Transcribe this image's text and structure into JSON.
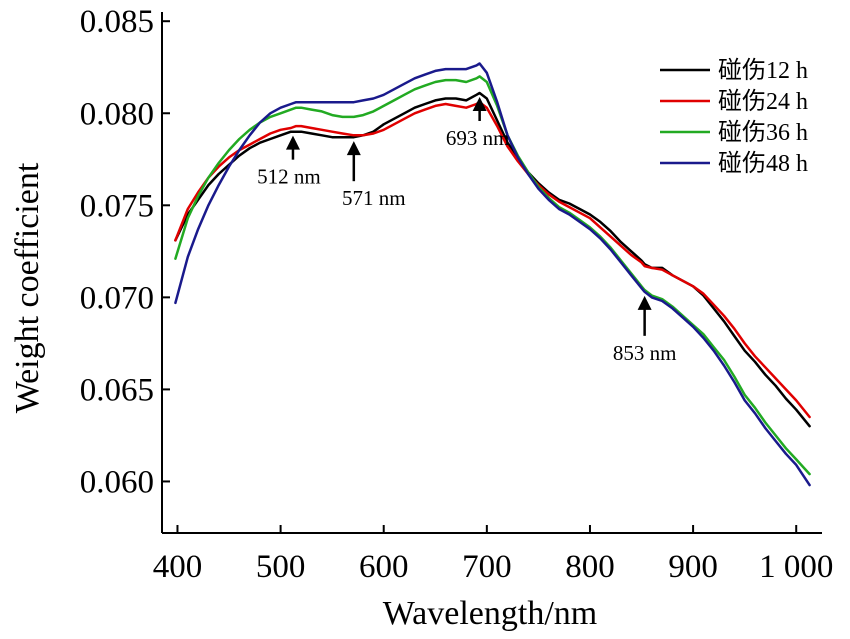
{
  "chart_data": {
    "type": "line",
    "title": "",
    "xlabel": "Wavelength/nm",
    "ylabel": "Weight coefficient",
    "xlim": [
      385,
      1025
    ],
    "ylim": [
      0.0572,
      0.0855
    ],
    "xticks": [
      400,
      500,
      600,
      700,
      800,
      900,
      1000
    ],
    "xtick_labels": [
      "400",
      "500",
      "600",
      "700",
      "800",
      "900",
      "1 000"
    ],
    "yticks": [
      0.06,
      0.065,
      0.07,
      0.075,
      0.08,
      0.085
    ],
    "ytick_labels": [
      "0.060",
      "0.065",
      "0.070",
      "0.075",
      "0.080",
      "0.085"
    ],
    "grid": false,
    "legend_position": "top-right",
    "x": [
      398,
      410,
      420,
      430,
      440,
      450,
      460,
      470,
      480,
      490,
      500,
      510,
      515,
      520,
      530,
      540,
      550,
      560,
      571,
      580,
      590,
      600,
      610,
      620,
      630,
      640,
      650,
      660,
      670,
      680,
      690,
      693,
      700,
      710,
      720,
      730,
      740,
      750,
      760,
      770,
      780,
      790,
      800,
      810,
      820,
      830,
      840,
      850,
      853,
      860,
      870,
      880,
      890,
      900,
      910,
      920,
      930,
      940,
      950,
      960,
      970,
      980,
      990,
      1000,
      1013
    ],
    "series": [
      {
        "name": "碰伤12 h",
        "color": "#000000",
        "values": [
          0.0731,
          0.0745,
          0.0753,
          0.0761,
          0.0767,
          0.0772,
          0.0777,
          0.0781,
          0.0784,
          0.0786,
          0.0788,
          0.079,
          0.079,
          0.079,
          0.0789,
          0.0788,
          0.0787,
          0.0787,
          0.0787,
          0.0788,
          0.079,
          0.0794,
          0.0797,
          0.08,
          0.0803,
          0.0805,
          0.0807,
          0.0808,
          0.0808,
          0.0807,
          0.081,
          0.0811,
          0.0808,
          0.0796,
          0.0784,
          0.0776,
          0.0768,
          0.0762,
          0.0757,
          0.0753,
          0.0751,
          0.0748,
          0.0745,
          0.0741,
          0.0736,
          0.073,
          0.0725,
          0.072,
          0.0718,
          0.0716,
          0.0716,
          0.0712,
          0.0709,
          0.0706,
          0.0701,
          0.0694,
          0.0687,
          0.0679,
          0.0671,
          0.0665,
          0.0658,
          0.0652,
          0.0645,
          0.0639,
          0.063
        ]
      },
      {
        "name": "碰伤24 h",
        "color": "#e00000",
        "values": [
          0.0731,
          0.0748,
          0.0757,
          0.0765,
          0.0771,
          0.0776,
          0.078,
          0.0783,
          0.0786,
          0.0789,
          0.0791,
          0.0792,
          0.0793,
          0.0793,
          0.0792,
          0.0791,
          0.079,
          0.0789,
          0.0788,
          0.0788,
          0.0789,
          0.0791,
          0.0794,
          0.0797,
          0.08,
          0.0802,
          0.0804,
          0.0805,
          0.0804,
          0.0803,
          0.0805,
          0.0806,
          0.0803,
          0.0793,
          0.0782,
          0.0774,
          0.0767,
          0.0761,
          0.0756,
          0.0752,
          0.0749,
          0.0746,
          0.0743,
          0.0738,
          0.0733,
          0.0728,
          0.0723,
          0.0719,
          0.0717,
          0.0716,
          0.0715,
          0.0712,
          0.0709,
          0.0706,
          0.0702,
          0.0696,
          0.069,
          0.0683,
          0.0675,
          0.0668,
          0.0662,
          0.0656,
          0.065,
          0.0644,
          0.0635
        ]
      },
      {
        "name": "碰伤36 h",
        "color": "#22aa22",
        "values": [
          0.0721,
          0.0743,
          0.0755,
          0.0765,
          0.0773,
          0.078,
          0.0786,
          0.0791,
          0.0795,
          0.0798,
          0.08,
          0.0802,
          0.0803,
          0.0803,
          0.0802,
          0.0801,
          0.0799,
          0.0798,
          0.0798,
          0.0799,
          0.0801,
          0.0804,
          0.0807,
          0.081,
          0.0813,
          0.0815,
          0.0817,
          0.0818,
          0.0818,
          0.0817,
          0.0819,
          0.082,
          0.0817,
          0.0804,
          0.0788,
          0.0777,
          0.0768,
          0.076,
          0.0754,
          0.0749,
          0.0746,
          0.0742,
          0.0738,
          0.0733,
          0.0727,
          0.072,
          0.0713,
          0.0706,
          0.0704,
          0.0701,
          0.0699,
          0.0695,
          0.069,
          0.0685,
          0.068,
          0.0673,
          0.0666,
          0.0657,
          0.0647,
          0.064,
          0.0632,
          0.0625,
          0.0618,
          0.0612,
          0.0604
        ]
      },
      {
        "name": "碰伤48 h",
        "color": "#1a1a8c",
        "values": [
          0.0697,
          0.0722,
          0.0737,
          0.075,
          0.0761,
          0.0771,
          0.078,
          0.0788,
          0.0795,
          0.08,
          0.0803,
          0.0805,
          0.0806,
          0.0806,
          0.0806,
          0.0806,
          0.0806,
          0.0806,
          0.0806,
          0.0807,
          0.0808,
          0.081,
          0.0813,
          0.0816,
          0.0819,
          0.0821,
          0.0823,
          0.0824,
          0.0824,
          0.0824,
          0.0826,
          0.0827,
          0.0822,
          0.0806,
          0.0788,
          0.0776,
          0.0767,
          0.0759,
          0.0753,
          0.0748,
          0.0745,
          0.0741,
          0.0737,
          0.0732,
          0.0726,
          0.0719,
          0.0712,
          0.0705,
          0.0703,
          0.07,
          0.0698,
          0.0694,
          0.0689,
          0.0684,
          0.0678,
          0.0671,
          0.0663,
          0.0654,
          0.0644,
          0.0637,
          0.0629,
          0.0622,
          0.0615,
          0.0609,
          0.0598
        ]
      }
    ],
    "annotations": [
      {
        "label": "512 nm",
        "x": 512,
        "y": 0.079
      },
      {
        "label": "571 nm",
        "x": 571,
        "y": 0.0787
      },
      {
        "label": "693 nm",
        "x": 693,
        "y": 0.0811
      },
      {
        "label": "853 nm",
        "x": 853,
        "y": 0.0703
      }
    ]
  }
}
